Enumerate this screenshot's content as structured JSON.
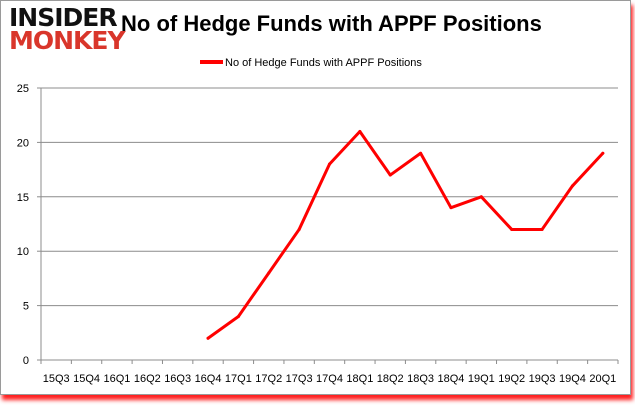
{
  "logo": {
    "line1": "INSIDER",
    "line2": "MONKEY"
  },
  "chart_data": {
    "type": "line",
    "title": "No of Hedge Funds with APPF Positions",
    "categories": [
      "15Q3",
      "15Q4",
      "16Q1",
      "16Q2",
      "16Q3",
      "16Q4",
      "17Q1",
      "17Q2",
      "17Q3",
      "17Q4",
      "18Q1",
      "18Q2",
      "18Q3",
      "18Q4",
      "19Q1",
      "19Q2",
      "19Q3",
      "19Q4",
      "20Q1"
    ],
    "series": [
      {
        "name": "No of Hedge Funds with APPF Positions",
        "color": "#ff0000",
        "values": [
          null,
          null,
          null,
          null,
          null,
          2,
          4,
          8,
          12,
          18,
          21,
          17,
          19,
          14,
          15,
          12,
          12,
          16,
          19
        ]
      }
    ],
    "ylim": [
      0,
      25
    ],
    "yticks": [
      0,
      5,
      10,
      15,
      20,
      25
    ],
    "grid": true,
    "legend": "top"
  }
}
